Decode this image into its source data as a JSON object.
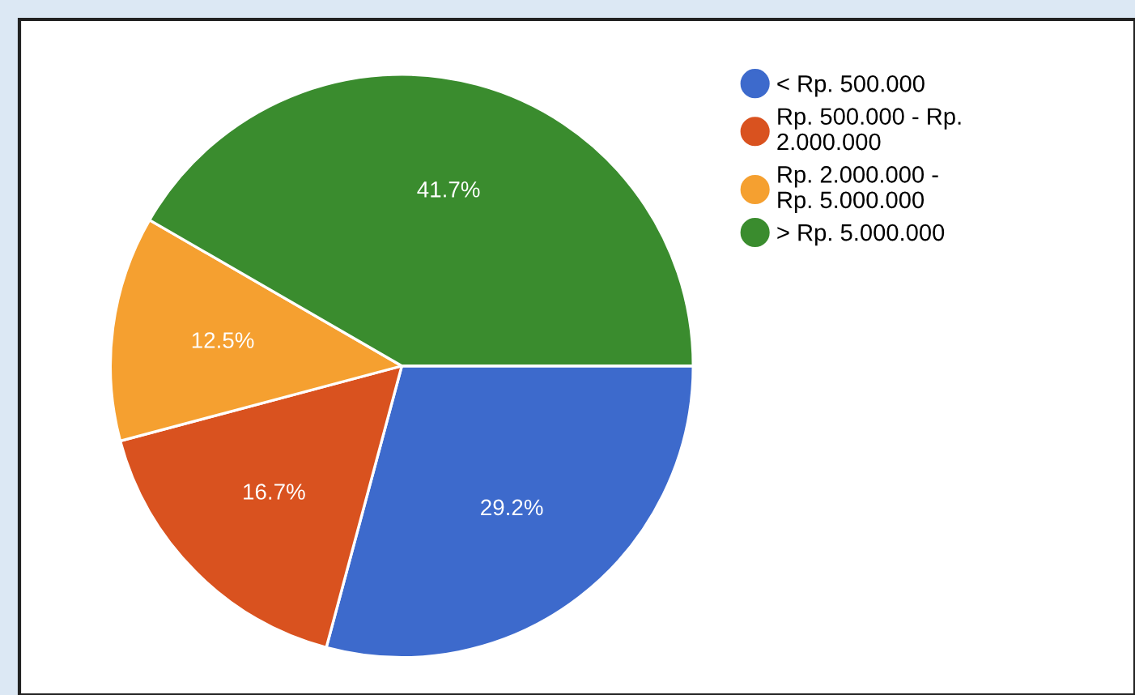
{
  "chart_data": {
    "type": "pie",
    "categories": [
      "< Rp. 500.000",
      "Rp. 500.000 - Rp. 2.000.000",
      "Rp. 2.000.000 - Rp. 5.000.000",
      "> Rp. 5.000.000"
    ],
    "values": [
      29.2,
      16.7,
      12.5,
      41.7
    ],
    "colors": [
      "#3d6acc",
      "#d9521f",
      "#f5a030",
      "#3a8c2e"
    ],
    "value_labels": [
      "29.2%",
      "16.7%",
      "12.5%",
      "41.7%"
    ],
    "legend": "top right"
  }
}
